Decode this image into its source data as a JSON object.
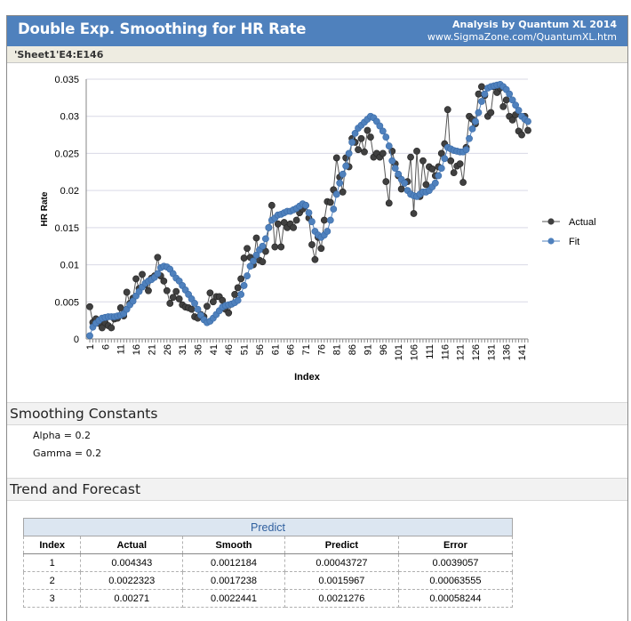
{
  "header": {
    "title": "Double Exp. Smoothing for HR Rate",
    "analysis_by": "Analysis by Quantum XL 2014",
    "url": "www.SigmaZone.com/QuantumXL.htm",
    "range": "'Sheet1'E4:E146",
    "color": "#4f81bd"
  },
  "chart_data": {
    "type": "line",
    "title": "",
    "xlabel": "Index",
    "ylabel": "HR Rate",
    "ylim": [
      0,
      0.035
    ],
    "yticks": [
      "0",
      "0.005",
      "0.01",
      "0.015",
      "0.02",
      "0.025",
      "0.03",
      "0.035"
    ],
    "xticks": [
      "1",
      "6",
      "11",
      "16",
      "21",
      "26",
      "31",
      "36",
      "41",
      "46",
      "51",
      "56",
      "61",
      "66",
      "71",
      "76",
      "81",
      "86",
      "91",
      "96",
      "101",
      "106",
      "111",
      "116",
      "121",
      "126",
      "131",
      "136",
      "141"
    ],
    "grid": true,
    "legend": "right",
    "series": [
      {
        "name": "Actual",
        "color": "#404040",
        "values": [
          0.004343,
          0.0022323,
          0.00271,
          0.0021,
          0.0015,
          0.0022,
          0.0018,
          0.0015,
          0.0027,
          0.0028,
          0.0042,
          0.0031,
          0.0063,
          0.0048,
          0.0055,
          0.0081,
          0.0068,
          0.0087,
          0.0073,
          0.0065,
          0.0082,
          0.0085,
          0.011,
          0.0085,
          0.0078,
          0.0065,
          0.0048,
          0.0056,
          0.0064,
          0.0054,
          0.0046,
          0.0043,
          0.0042,
          0.004,
          0.003,
          0.0028,
          0.0033,
          0.003,
          0.0044,
          0.0062,
          0.005,
          0.0057,
          0.0057,
          0.0052,
          0.004,
          0.0035,
          0.0047,
          0.006,
          0.0069,
          0.0081,
          0.0109,
          0.0122,
          0.011,
          0.01,
          0.0136,
          0.0106,
          0.0104,
          0.0118,
          0.015,
          0.018,
          0.0124,
          0.0155,
          0.0124,
          0.0157,
          0.015,
          0.0155,
          0.015,
          0.016,
          0.017,
          0.0175,
          0.018,
          0.0163,
          0.0127,
          0.0107,
          0.0137,
          0.0122,
          0.016,
          0.0185,
          0.0184,
          0.0201,
          0.0244,
          0.0218,
          0.0198,
          0.0244,
          0.0232,
          0.027,
          0.0265,
          0.0255,
          0.027,
          0.0252,
          0.0281,
          0.0272,
          0.0245,
          0.025,
          0.0245,
          0.025,
          0.0212,
          0.0183,
          0.0253,
          0.0236,
          0.022,
          0.0202,
          0.021,
          0.0212,
          0.0245,
          0.0169,
          0.0253,
          0.0192,
          0.024,
          0.0208,
          0.0232,
          0.0229,
          0.022,
          0.0232,
          0.025,
          0.0263,
          0.0309,
          0.024,
          0.0224,
          0.0233,
          0.0236,
          0.0211,
          0.0258,
          0.03,
          0.0296,
          0.029,
          0.033,
          0.034,
          0.0328,
          0.03,
          0.0305,
          0.034,
          0.0332,
          0.0338,
          0.0313,
          0.0322,
          0.03,
          0.0295,
          0.0302,
          0.028,
          0.0275,
          0.03,
          0.0281
        ]
      },
      {
        "name": "Fit",
        "color": "#4f81bd",
        "values": [
          0.00043727,
          0.0015967,
          0.0021276,
          0.0025,
          0.0028,
          0.0029,
          0.003,
          0.003,
          0.003,
          0.0031,
          0.0032,
          0.0034,
          0.004,
          0.0046,
          0.0051,
          0.0058,
          0.0064,
          0.007,
          0.0075,
          0.0078,
          0.008,
          0.0083,
          0.0088,
          0.0096,
          0.0098,
          0.0097,
          0.0094,
          0.0088,
          0.0082,
          0.0078,
          0.0072,
          0.0066,
          0.006,
          0.0054,
          0.0048,
          0.004,
          0.0032,
          0.0026,
          0.0022,
          0.0024,
          0.0028,
          0.0033,
          0.0038,
          0.0043,
          0.0045,
          0.0046,
          0.0047,
          0.0049,
          0.0052,
          0.006,
          0.0072,
          0.0085,
          0.0098,
          0.0105,
          0.0113,
          0.012,
          0.0125,
          0.0135,
          0.015,
          0.016,
          0.0163,
          0.0167,
          0.0168,
          0.017,
          0.0172,
          0.0172,
          0.0174,
          0.0176,
          0.0179,
          0.0182,
          0.018,
          0.017,
          0.0158,
          0.0145,
          0.014,
          0.0137,
          0.014,
          0.0145,
          0.016,
          0.0175,
          0.0195,
          0.021,
          0.0222,
          0.0233,
          0.025,
          0.0265,
          0.0277,
          0.0284,
          0.0288,
          0.0292,
          0.0296,
          0.03,
          0.0298,
          0.0293,
          0.0287,
          0.028,
          0.0272,
          0.026,
          0.024,
          0.023,
          0.0222,
          0.0215,
          0.021,
          0.02,
          0.0195,
          0.0193,
          0.0192,
          0.0195,
          0.0198,
          0.0198,
          0.02,
          0.0205,
          0.021,
          0.022,
          0.023,
          0.0243,
          0.0258,
          0.0256,
          0.0254,
          0.0253,
          0.0252,
          0.0252,
          0.0255,
          0.027,
          0.0283,
          0.0293,
          0.0305,
          0.032,
          0.033,
          0.0338,
          0.034,
          0.0341,
          0.0342,
          0.0343,
          0.034,
          0.0336,
          0.033,
          0.0322,
          0.0315,
          0.0308,
          0.03,
          0.0296,
          0.0293
        ]
      }
    ]
  },
  "smoothing": {
    "heading": "Smoothing Constants",
    "alpha": "Alpha = 0.2",
    "gamma": "Gamma = 0.2"
  },
  "trend": {
    "heading": "Trend and Forecast",
    "table_caption": "Predict",
    "columns": [
      "Index",
      "Actual",
      "Smooth",
      "Predict",
      "Error"
    ],
    "rows": [
      [
        "1",
        "0.004343",
        "0.0012184",
        "0.00043727",
        "0.0039057"
      ],
      [
        "2",
        "0.0022323",
        "0.0017238",
        "0.0015967",
        "0.00063555"
      ],
      [
        "3",
        "0.00271",
        "0.0022441",
        "0.0021276",
        "0.00058244"
      ]
    ]
  }
}
